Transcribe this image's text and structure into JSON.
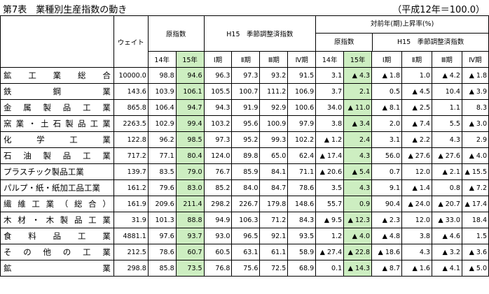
{
  "caption": {
    "left": "第7表　業種別生産指数の動き",
    "right": "（平成12年＝100.0）"
  },
  "header": {
    "weight": "ウェイト",
    "gensu": "原指数",
    "kisetsu": "H15　季節調整済指数",
    "taizen": "対前年(期)上昇率(%)",
    "sub_gensu": "原指数",
    "sub_kisetsu": "H15　季節調整済指数",
    "cols": [
      "14年",
      "15年",
      "Ⅰ期",
      "Ⅱ期",
      "Ⅲ期",
      "Ⅳ期",
      "14年",
      "15年",
      "Ⅰ期",
      "Ⅱ期",
      "Ⅲ期",
      "Ⅳ期"
    ]
  },
  "rows": [
    {
      "name": "鉱工業総合",
      "weight": "10000.0",
      "g14": "98.8",
      "g15": "94.6",
      "k1": "96.3",
      "k2": "97.3",
      "k3": "93.2",
      "k4": "91.5",
      "r14": "3.1",
      "r15": "▲ 4.3",
      "q1": "▲ 1.8",
      "q2": "1.0",
      "q3": "▲ 4.2",
      "q4": "▲ 1.8"
    },
    {
      "name": "鉄鋼業",
      "weight": "143.6",
      "g14": "103.9",
      "g15": "106.1",
      "k1": "105.5",
      "k2": "100.7",
      "k3": "111.2",
      "k4": "106.9",
      "r14": "3.7",
      "r15": "2.1",
      "q1": "0.5",
      "q2": "▲ 4.5",
      "q3": "10.4",
      "q4": "▲ 3.9"
    },
    {
      "name": "金属製品工業",
      "weight": "865.8",
      "g14": "106.4",
      "g15": "94.7",
      "k1": "94.3",
      "k2": "91.9",
      "k3": "92.9",
      "k4": "100.6",
      "r14": "34.0",
      "r15": "▲ 11.0",
      "q1": "▲ 8.1",
      "q2": "▲ 2.5",
      "q3": "1.1",
      "q4": "8.3"
    },
    {
      "name": "窯業・土石製品工業",
      "weight": "2263.5",
      "g14": "102.9",
      "g15": "99.4",
      "k1": "103.2",
      "k2": "95.6",
      "k3": "100.9",
      "k4": "97.9",
      "r14": "3.8",
      "r15": "▲ 3.4",
      "q1": "2.0",
      "q2": "▲ 7.4",
      "q3": "5.5",
      "q4": "▲ 3.0"
    },
    {
      "name": "化学工業",
      "weight": "122.8",
      "g14": "96.2",
      "g15": "98.5",
      "k1": "97.3",
      "k2": "95.2",
      "k3": "99.3",
      "k4": "102.2",
      "r14": "▲ 1.2",
      "r15": "2.4",
      "q1": "3.1",
      "q2": "▲ 2.2",
      "q3": "4.3",
      "q4": "2.9"
    },
    {
      "name": "石油製品工業",
      "weight": "717.2",
      "g14": "77.1",
      "g15": "80.4",
      "k1": "124.0",
      "k2": "89.8",
      "k3": "65.0",
      "k4": "62.4",
      "r14": "▲ 17.4",
      "r15": "4.3",
      "q1": "56.0",
      "q2": "▲ 27.6",
      "q3": "▲ 27.6",
      "q4": "▲ 4.0"
    },
    {
      "name": "プラスチック製品工業",
      "weight": "139.7",
      "g14": "83.5",
      "g15": "79.0",
      "k1": "76.7",
      "k2": "85.9",
      "k3": "84.1",
      "k4": "71.1",
      "r14": "▲ 20.6",
      "r15": "▲ 5.4",
      "q1": "0.7",
      "q2": "12.0",
      "q3": "▲ 2.1",
      "q4": "▲ 15.5"
    },
    {
      "name": "パルプ・紙・紙加工品工業",
      "weight": "161.2",
      "g14": "79.6",
      "g15": "83.0",
      "k1": "85.2",
      "k2": "84.0",
      "k3": "84.7",
      "k4": "78.6",
      "r14": "3.5",
      "r15": "4.3",
      "q1": "9.1",
      "q2": "▲ 1.4",
      "q3": "0.8",
      "q4": "▲ 7.2"
    },
    {
      "name": "繊維工業（総合）",
      "weight": "161.9",
      "g14": "209.6",
      "g15": "211.4",
      "k1": "298.2",
      "k2": "226.7",
      "k3": "179.8",
      "k4": "148.6",
      "r14": "55.7",
      "r15": "0.9",
      "q1": "90.4",
      "q2": "▲ 24.0",
      "q3": "▲ 20.7",
      "q4": "▲ 17.4"
    },
    {
      "name": "木材・木製品工業",
      "weight": "31.9",
      "g14": "101.3",
      "g15": "88.8",
      "k1": "94.9",
      "k2": "106.3",
      "k3": "71.2",
      "k4": "84.3",
      "r14": "▲ 9.5",
      "r15": "▲ 12.3",
      "q1": "▲ 2.3",
      "q2": "12.0",
      "q3": "▲ 33.0",
      "q4": "18.4"
    },
    {
      "name": "食料品工業",
      "weight": "4881.1",
      "g14": "97.6",
      "g15": "93.7",
      "k1": "93.0",
      "k2": "96.5",
      "k3": "92.1",
      "k4": "93.5",
      "r14": "1.2",
      "r15": "▲ 4.0",
      "q1": "▲ 4.8",
      "q2": "3.8",
      "q3": "▲ 4.6",
      "q4": "1.5"
    },
    {
      "name": "その他の工業",
      "weight": "212.5",
      "g14": "78.6",
      "g15": "60.7",
      "k1": "60.5",
      "k2": "63.1",
      "k3": "61.1",
      "k4": "58.9",
      "r14": "▲ 27.4",
      "r15": "▲ 22.8",
      "q1": "▲ 18.6",
      "q2": "4.3",
      "q3": "▲ 3.2",
      "q4": "▲ 3.6"
    },
    {
      "name": "鉱業",
      "weight": "298.8",
      "g14": "85.8",
      "g15": "73.5",
      "k1": "76.8",
      "k2": "75.6",
      "k3": "72.5",
      "k4": "68.9",
      "r14": "0.1",
      "r15": "▲ 14.3",
      "q1": "▲ 8.7",
      "q2": "▲ 1.6",
      "q3": "▲ 4.1",
      "q4": "▲ 5.0"
    }
  ]
}
